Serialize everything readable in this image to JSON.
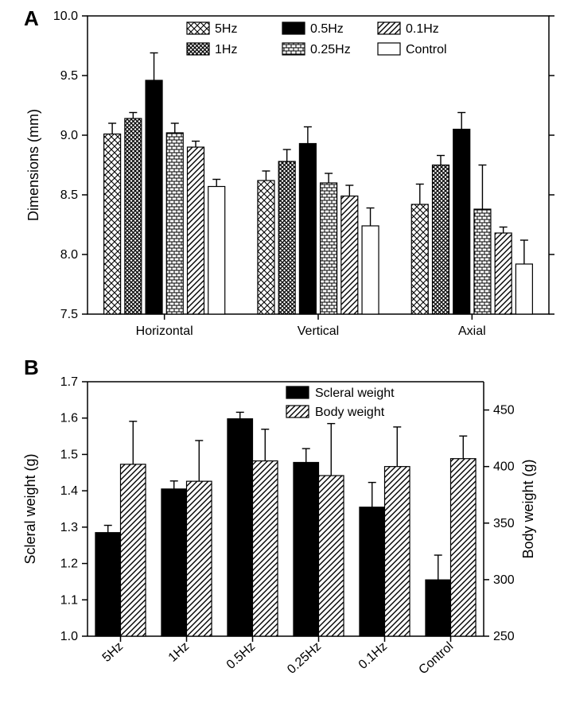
{
  "panelA": {
    "label": "A",
    "type": "bar",
    "ylabel": "Dimensions (mm)",
    "ylim": [
      7.5,
      10.0
    ],
    "ytick_step": 0.5,
    "groups": [
      "Horizontal",
      "Vertical",
      "Axial"
    ],
    "series": [
      {
        "name": "5Hz",
        "pattern": "hatch-x",
        "color": "#ffffff"
      },
      {
        "name": "1Hz",
        "pattern": "hatch-dx",
        "color": "#ffffff"
      },
      {
        "name": "0.5Hz",
        "pattern": "solid",
        "color": "#000000"
      },
      {
        "name": "0.25Hz",
        "pattern": "hatch-brick",
        "color": "#ffffff"
      },
      {
        "name": "0.1Hz",
        "pattern": "hatch-diag",
        "color": "#ffffff"
      },
      {
        "name": "Control",
        "pattern": "solid",
        "color": "#ffffff"
      }
    ],
    "data": {
      "Horizontal": [
        {
          "v": 9.01,
          "e": 0.09
        },
        {
          "v": 9.14,
          "e": 0.05
        },
        {
          "v": 9.46,
          "e": 0.23
        },
        {
          "v": 9.02,
          "e": 0.08
        },
        {
          "v": 8.9,
          "e": 0.05
        },
        {
          "v": 8.57,
          "e": 0.06
        }
      ],
      "Vertical": [
        {
          "v": 8.62,
          "e": 0.08
        },
        {
          "v": 8.78,
          "e": 0.1
        },
        {
          "v": 8.93,
          "e": 0.14
        },
        {
          "v": 8.6,
          "e": 0.08
        },
        {
          "v": 8.49,
          "e": 0.09
        },
        {
          "v": 8.24,
          "e": 0.15
        }
      ],
      "Axial": [
        {
          "v": 8.42,
          "e": 0.17
        },
        {
          "v": 8.75,
          "e": 0.08
        },
        {
          "v": 9.05,
          "e": 0.14
        },
        {
          "v": 8.38,
          "e": 0.37
        },
        {
          "v": 8.18,
          "e": 0.05
        },
        {
          "v": 7.92,
          "e": 0.2
        }
      ]
    },
    "legend_layout": [
      [
        "5Hz",
        "0.5Hz",
        "0.1Hz"
      ],
      [
        "1Hz",
        "0.25Hz",
        "Control"
      ]
    ],
    "label_fontsize": 18,
    "tick_fontsize": 16,
    "background_color": "#ffffff",
    "axis_color": "#000000",
    "bar_width": 0.8
  },
  "panelB": {
    "label": "B",
    "type": "bar",
    "y1label": "Scleral weight (g)",
    "y2label": "Body weight (g)",
    "y1lim": [
      1.0,
      1.7
    ],
    "y1tick_step": 0.1,
    "y2lim": [
      250,
      475
    ],
    "y2tick_step": 50,
    "categories": [
      "5Hz",
      "1Hz",
      "0.5Hz",
      "0.25Hz",
      "0.1Hz",
      "Control"
    ],
    "series": [
      {
        "name": "Scleral  weight",
        "pattern": "solid",
        "color": "#000000",
        "axis": "left"
      },
      {
        "name": "Body weight",
        "pattern": "hatch-diag",
        "color": "#ffffff",
        "axis": "right"
      }
    ],
    "data": {
      "scleral": [
        {
          "v": 1.285,
          "e": 0.02
        },
        {
          "v": 1.405,
          "e": 0.022
        },
        {
          "v": 1.598,
          "e": 0.018
        },
        {
          "v": 1.478,
          "e": 0.038
        },
        {
          "v": 1.355,
          "e": 0.068
        },
        {
          "v": 1.155,
          "e": 0.068
        }
      ],
      "body": [
        {
          "v": 402,
          "e": 38
        },
        {
          "v": 387,
          "e": 36
        },
        {
          "v": 405,
          "e": 28
        },
        {
          "v": 392,
          "e": 46
        },
        {
          "v": 400,
          "e": 35
        },
        {
          "v": 407,
          "e": 20
        }
      ]
    },
    "label_fontsize": 18,
    "tick_fontsize": 16,
    "background_color": "#ffffff",
    "axis_color": "#000000",
    "bar_width": 0.82
  }
}
